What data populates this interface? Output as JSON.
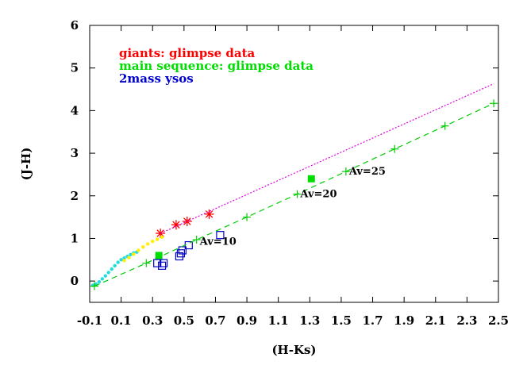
{
  "chart_data": {
    "type": "scatter",
    "xlabel": "(H-Ks)",
    "ylabel": "(J-H)",
    "xlim": [
      -0.1,
      2.5
    ],
    "ylim": [
      -0.5,
      6
    ],
    "xticks": [
      -0.1,
      0.1,
      0.3,
      0.5,
      0.7,
      0.9,
      1.1,
      1.3,
      1.5,
      1.7,
      1.9,
      2.1,
      2.3,
      2.5
    ],
    "xtick_labels": [
      "-0.1",
      "0.1",
      "0.3",
      "0.5",
      "0.7",
      "0.9",
      "1.1",
      "1.3",
      "1.5",
      "1.7",
      "1.9",
      "2.1",
      "2.3",
      "2.5"
    ],
    "yticks": [
      0,
      1,
      2,
      3,
      4,
      5,
      6
    ],
    "ytick_labels": [
      "0",
      "1",
      "2",
      "3",
      "4",
      "5",
      "6"
    ],
    "legend_placement": "top-left",
    "grid": false,
    "series": [
      {
        "name": "giants: glimpse data",
        "marker": "asterisk",
        "color": "#ff0000",
        "points": [
          [
            0.35,
            1.12
          ],
          [
            0.45,
            1.32
          ],
          [
            0.52,
            1.4
          ],
          [
            0.66,
            1.57
          ]
        ]
      },
      {
        "name": "main sequence: glimpse data",
        "marker": "filled-square",
        "color": "#00dd00",
        "points": [
          [
            0.34,
            0.6
          ],
          [
            1.31,
            2.4
          ]
        ]
      },
      {
        "name": "2mass ysos",
        "marker": "open-square",
        "color": "#0000cc",
        "points": [
          [
            0.33,
            0.42
          ],
          [
            0.36,
            0.36
          ],
          [
            0.37,
            0.42
          ],
          [
            0.47,
            0.58
          ],
          [
            0.48,
            0.65
          ],
          [
            0.49,
            0.72
          ],
          [
            0.53,
            0.84
          ],
          [
            0.73,
            1.08
          ]
        ]
      },
      {
        "marker": "filled-dot",
        "color": "#22dddd",
        "points": [
          [
            -0.08,
            -0.1
          ],
          [
            -0.06,
            -0.07
          ],
          [
            -0.04,
            -0.02
          ],
          [
            -0.02,
            0.05
          ],
          [
            0.0,
            0.12
          ],
          [
            0.02,
            0.2
          ],
          [
            0.04,
            0.28
          ],
          [
            0.06,
            0.36
          ],
          [
            0.08,
            0.44
          ],
          [
            0.1,
            0.5
          ],
          [
            0.12,
            0.54
          ],
          [
            0.14,
            0.58
          ],
          [
            0.16,
            0.62
          ],
          [
            0.18,
            0.66
          ],
          [
            0.2,
            0.68
          ]
        ]
      },
      {
        "marker": "filled-dot",
        "color": "#ffee00",
        "points": [
          [
            0.12,
            0.48
          ],
          [
            0.15,
            0.55
          ],
          [
            0.18,
            0.63
          ],
          [
            0.21,
            0.72
          ],
          [
            0.24,
            0.8
          ],
          [
            0.27,
            0.87
          ],
          [
            0.3,
            0.93
          ],
          [
            0.33,
            0.98
          ],
          [
            0.36,
            1.03
          ]
        ]
      },
      {
        "marker": "plus-line",
        "line_style": "dashed",
        "color": "#00cc00",
        "points": [
          [
            -0.07,
            -0.12
          ],
          [
            0.26,
            0.42
          ],
          [
            0.58,
            0.97
          ],
          [
            0.9,
            1.5
          ],
          [
            1.22,
            2.04
          ],
          [
            1.53,
            2.57
          ],
          [
            1.84,
            3.1
          ],
          [
            2.16,
            3.64
          ],
          [
            2.47,
            4.17
          ]
        ]
      },
      {
        "marker": "none",
        "line_style": "dotted",
        "color": "#dd00dd",
        "points": [
          [
            0.35,
            1.12
          ],
          [
            2.47,
            4.63
          ]
        ]
      }
    ],
    "annotations": [
      {
        "text": "Av=10",
        "x": 0.6,
        "y": 0.85
      },
      {
        "text": "Av=20",
        "x": 1.24,
        "y": 1.97
      },
      {
        "text": "Av=25",
        "x": 1.55,
        "y": 2.5
      }
    ]
  }
}
